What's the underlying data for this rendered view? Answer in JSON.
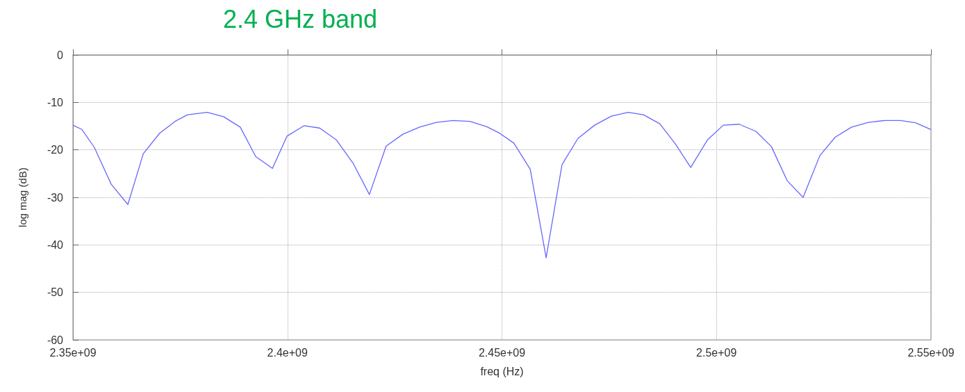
{
  "chart_data": {
    "type": "line",
    "title": "2.4 GHz band",
    "xlabel": "freq (Hz)",
    "ylabel": "log mag (dB)",
    "x": [
      2350000000,
      2352100000,
      2355000000,
      2358900000,
      2362800000,
      2366400000,
      2370200000,
      2373800000,
      2376700000,
      2381300000,
      2385100000,
      2389000000,
      2392600000,
      2396500000,
      2399900000,
      2403900000,
      2407500000,
      2411400000,
      2415300000,
      2419100000,
      2423000000,
      2426900000,
      2430800000,
      2434700000,
      2438600000,
      2442500000,
      2446400000,
      2449300000,
      2452800000,
      2456600000,
      2460300000,
      2464000000,
      2467700000,
      2471600000,
      2475500000,
      2479400000,
      2483000000,
      2486800000,
      2490400000,
      2494000000,
      2497900000,
      2501600000,
      2505300000,
      2509200000,
      2512800000,
      2516500000,
      2520200000,
      2524100000,
      2527700000,
      2531500000,
      2535400000,
      2539300000,
      2542900000,
      2546400000,
      2550000000
    ],
    "series": [
      {
        "color": "#6666ff",
        "values": [
          -14.8,
          -15.7,
          -19.5,
          -27.2,
          -31.5,
          -20.8,
          -16.5,
          -14.0,
          -12.6,
          -12.1,
          -13.0,
          -15.2,
          -21.4,
          -23.9,
          -17.1,
          -14.9,
          -15.4,
          -17.9,
          -22.8,
          -29.4,
          -19.2,
          -16.7,
          -15.2,
          -14.2,
          -13.8,
          -14.0,
          -15.1,
          -16.4,
          -18.6,
          -24.1,
          -42.7,
          -23.1,
          -17.6,
          -14.8,
          -12.9,
          -12.1,
          -12.6,
          -14.5,
          -18.7,
          -23.7,
          -17.9,
          -14.8,
          -14.6,
          -16.1,
          -19.3,
          -26.5,
          -30.0,
          -21.2,
          -17.3,
          -15.2,
          -14.2,
          -13.8,
          -13.8,
          -14.3,
          -15.7
        ]
      }
    ],
    "xlim": [
      2350000000,
      2550000000
    ],
    "xticks": [
      {
        "value": 2350000000,
        "label": "2.35e+09"
      },
      {
        "value": 2400000000,
        "label": "2.4e+09"
      },
      {
        "value": 2450000000,
        "label": "2.45e+09"
      },
      {
        "value": 2500000000,
        "label": "2.5e+09"
      },
      {
        "value": 2550000000,
        "label": "2.55e+09"
      }
    ],
    "ylim": [
      -60,
      0
    ],
    "yticks": [
      -60,
      -50,
      -40,
      -30,
      -20,
      -10,
      0
    ],
    "grid": true,
    "marker": "none",
    "line_style": "solid"
  }
}
